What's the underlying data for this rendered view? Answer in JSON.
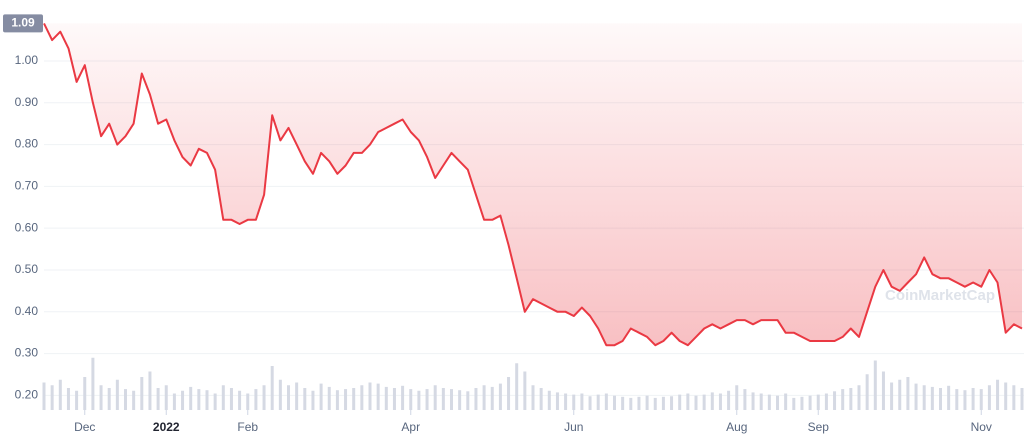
{
  "chart_data": {
    "type": "line",
    "reference_price": 1.09,
    "watermark": "CoinMarketCap",
    "ylim": [
      0.165,
      1.11
    ],
    "yticks": [
      {
        "value": 0.2,
        "label": "0.20"
      },
      {
        "value": 0.3,
        "label": "0.30"
      },
      {
        "value": 0.4,
        "label": "0.40"
      },
      {
        "value": 0.5,
        "label": "0.50"
      },
      {
        "value": 0.6,
        "label": "0.60"
      },
      {
        "value": 0.7,
        "label": "0.70"
      },
      {
        "value": 0.8,
        "label": "0.80"
      },
      {
        "value": 0.9,
        "label": "0.90"
      },
      {
        "value": 1.0,
        "label": "1.00"
      }
    ],
    "xlim": [
      0,
      120
    ],
    "xticks": [
      {
        "value": 5,
        "label": "Dec"
      },
      {
        "value": 15,
        "label": "2022"
      },
      {
        "value": 25,
        "label": "Feb"
      },
      {
        "value": 45,
        "label": "Apr"
      },
      {
        "value": 65,
        "label": "Jun"
      },
      {
        "value": 85,
        "label": "Aug"
      },
      {
        "value": 95,
        "label": "Sep"
      },
      {
        "value": 115,
        "label": "Nov"
      }
    ],
    "grid": true,
    "y2lim": [
      0,
      100
    ],
    "series": [
      {
        "color": "#ea3943",
        "values": [
          1.09,
          1.05,
          1.07,
          1.03,
          0.95,
          0.99,
          0.9,
          0.82,
          0.85,
          0.8,
          0.82,
          0.85,
          0.97,
          0.92,
          0.85,
          0.86,
          0.81,
          0.77,
          0.75,
          0.79,
          0.78,
          0.74,
          0.62,
          0.62,
          0.61,
          0.62,
          0.62,
          0.68,
          0.87,
          0.81,
          0.84,
          0.8,
          0.76,
          0.73,
          0.78,
          0.76,
          0.73,
          0.75,
          0.78,
          0.78,
          0.8,
          0.83,
          0.84,
          0.85,
          0.86,
          0.83,
          0.81,
          0.77,
          0.72,
          0.75,
          0.78,
          0.76,
          0.74,
          0.68,
          0.62,
          0.62,
          0.63,
          0.56,
          0.48,
          0.4,
          0.43,
          0.42,
          0.41,
          0.4,
          0.4,
          0.39,
          0.41,
          0.39,
          0.36,
          0.32,
          0.32,
          0.33,
          0.36,
          0.35,
          0.34,
          0.32,
          0.33,
          0.35,
          0.33,
          0.32,
          0.34,
          0.36,
          0.37,
          0.36,
          0.37,
          0.38,
          0.38,
          0.37,
          0.38,
          0.38,
          0.38,
          0.35,
          0.35,
          0.34,
          0.33,
          0.33,
          0.33,
          0.33,
          0.34,
          0.36,
          0.34,
          0.4,
          0.46,
          0.5,
          0.46,
          0.45,
          0.47,
          0.49,
          0.53,
          0.49,
          0.48,
          0.48,
          0.47,
          0.46,
          0.47,
          0.46,
          0.5,
          0.47,
          0.35,
          0.37,
          0.36
        ]
      },
      {
        "color": "#d5d9e3",
        "axis": "y2",
        "values": [
          50,
          45,
          55,
          40,
          35,
          60,
          95,
          45,
          40,
          55,
          38,
          35,
          60,
          70,
          40,
          45,
          30,
          35,
          42,
          38,
          36,
          30,
          45,
          40,
          35,
          30,
          38,
          45,
          80,
          55,
          45,
          50,
          40,
          35,
          48,
          42,
          36,
          38,
          40,
          45,
          50,
          48,
          42,
          40,
          44,
          38,
          35,
          38,
          45,
          40,
          38,
          36,
          34,
          40,
          45,
          42,
          48,
          60,
          85,
          70,
          45,
          40,
          35,
          32,
          30,
          28,
          30,
          25,
          28,
          30,
          26,
          24,
          22,
          24,
          26,
          22,
          24,
          25,
          28,
          30,
          26,
          28,
          32,
          30,
          35,
          45,
          38,
          32,
          30,
          28,
          26,
          30,
          22,
          24,
          26,
          28,
          30,
          34,
          38,
          40,
          45,
          65,
          90,
          70,
          50,
          55,
          60,
          48,
          45,
          42,
          40,
          44,
          38,
          36,
          40,
          38,
          45,
          55,
          50,
          45,
          40
        ]
      }
    ]
  }
}
